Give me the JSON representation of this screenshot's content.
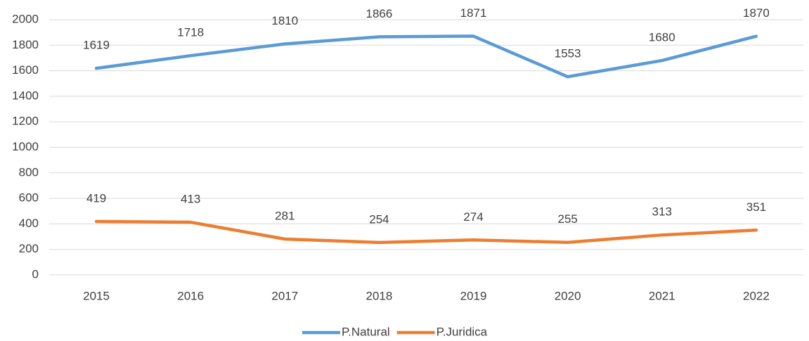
{
  "chart_data": {
    "type": "line",
    "categories": [
      "2015",
      "2016",
      "2017",
      "2018",
      "2019",
      "2020",
      "2021",
      "2022"
    ],
    "series": [
      {
        "name": "P.Natural",
        "color": "#5b9bd5",
        "values": [
          1619,
          1718,
          1810,
          1866,
          1871,
          1553,
          1680,
          1870
        ]
      },
      {
        "name": "P.Juridica",
        "color": "#ed7d31",
        "values": [
          419,
          413,
          281,
          254,
          274,
          255,
          313,
          351
        ]
      }
    ],
    "ylim": [
      0,
      2000
    ],
    "yticks": [
      0,
      200,
      400,
      600,
      800,
      1000,
      1200,
      1400,
      1600,
      1800,
      2000
    ],
    "grid": true,
    "legend": "bottom"
  }
}
